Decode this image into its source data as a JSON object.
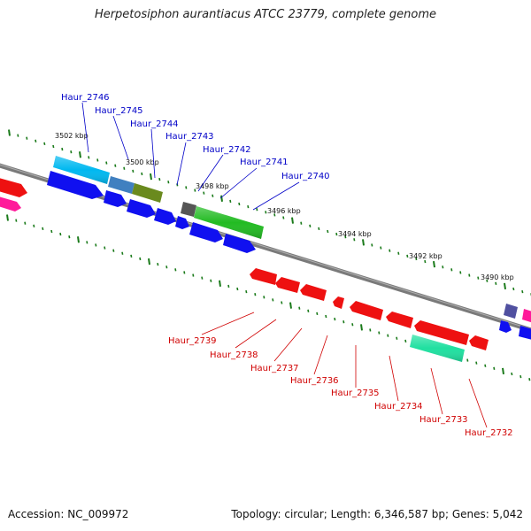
{
  "title": "Herpetosiphon aurantiacus ATCC 23779, complete genome",
  "footer": {
    "accession": "Accession: NC_009972",
    "stats": "Topology: circular; Length: 6,346,587 bp; Genes: 5,042"
  },
  "colors": {
    "backbone": "#808080",
    "scale_tick": "#1a7a1a",
    "forward_label": "#0000c8",
    "reverse_label": "#d00000"
  },
  "scale_labels": [
    "3502 kbp",
    "3500 kbp",
    "3498 kbp",
    "3496 kbp",
    "3494 kbp",
    "3492 kbp",
    "3490 kbp"
  ],
  "forward_genes": [
    "Haur_2746",
    "Haur_2745",
    "Haur_2744",
    "Haur_2743",
    "Haur_2742",
    "Haur_2741",
    "Haur_2740"
  ],
  "reverse_genes": [
    "Haur_2739",
    "Haur_2738",
    "Haur_2737",
    "Haur_2736",
    "Haur_2735",
    "Haur_2734",
    "Haur_2733",
    "Haur_2732"
  ]
}
